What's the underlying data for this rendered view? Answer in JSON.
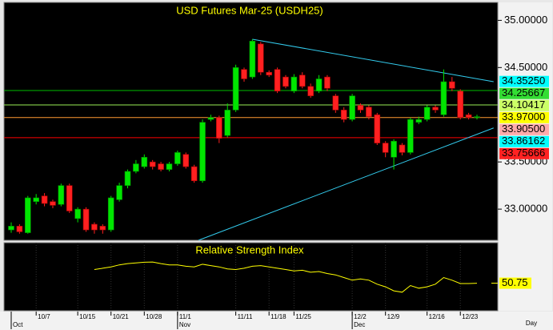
{
  "chart_data": {
    "type": "candlestick",
    "title": "USD Futures Mar-25 (USDH25)",
    "categories": [
      null,
      null,
      null,
      "10/7",
      null,
      null,
      null,
      null,
      "10/15",
      null,
      null,
      null,
      "10/21",
      null,
      null,
      null,
      "10/28",
      null,
      null,
      null,
      "11/1",
      null,
      null,
      null,
      null,
      null,
      null,
      "11/11",
      null,
      null,
      null,
      "11/18",
      null,
      null,
      "11/25",
      null,
      null,
      null,
      null,
      null,
      null,
      "12/2",
      null,
      null,
      null,
      "12/9",
      null,
      null,
      null,
      null,
      "12/16",
      null,
      null,
      null,
      "12/23",
      null,
      null
    ],
    "month_labels": [
      "Oct",
      null,
      null,
      null,
      null,
      null,
      null,
      null,
      null,
      null,
      null,
      null,
      null,
      null,
      null,
      null,
      null,
      null,
      null,
      null,
      "Nov",
      null,
      null,
      null,
      null,
      null,
      null,
      null,
      null,
      null,
      null,
      null,
      null,
      null,
      null,
      null,
      null,
      null,
      null,
      null,
      null,
      "Dec",
      null,
      null,
      null,
      null,
      null,
      null,
      null,
      null,
      null,
      null,
      null,
      null,
      null,
      null,
      null
    ],
    "open": [
      32.78,
      32.82,
      32.75,
      33.08,
      33.14,
      33.08,
      33.05,
      33.25,
      32.9,
      33.0,
      32.84,
      32.82,
      32.78,
      33.1,
      33.25,
      33.4,
      33.45,
      33.5,
      33.48,
      33.42,
      33.48,
      33.58,
      33.45,
      33.3,
      33.95,
      33.97,
      33.78,
      34.05,
      34.48,
      34.4,
      34.75,
      34.45,
      34.48,
      34.4,
      34.25,
      34.42,
      34.3,
      34.25,
      34.4,
      34.2,
      34.05,
      33.95,
      34.1,
      34.08,
      34.0,
      33.7,
      33.55,
      33.68,
      33.6,
      33.92,
      33.95,
      34.08,
      34.0,
      34.35,
      34.25,
      34.0,
      33.97
    ],
    "high": [
      32.86,
      32.84,
      33.14,
      33.16,
      33.17,
      33.1,
      33.27,
      33.27,
      33.02,
      33.02,
      32.86,
      32.84,
      33.14,
      33.28,
      33.42,
      33.52,
      33.58,
      33.52,
      33.5,
      33.5,
      33.62,
      33.6,
      33.47,
      33.95,
      34.0,
      33.99,
      34.12,
      34.53,
      34.5,
      34.8,
      34.77,
      34.47,
      34.5,
      34.42,
      34.43,
      34.45,
      34.33,
      34.42,
      34.42,
      34.22,
      34.08,
      34.22,
      34.12,
      34.1,
      34.02,
      33.72,
      33.74,
      33.7,
      33.97,
      33.98,
      34.1,
      34.1,
      34.48,
      34.4,
      34.27,
      34.02,
      34.0
    ],
    "low": [
      32.75,
      32.74,
      32.74,
      33.05,
      33.03,
      33.01,
      33.03,
      32.96,
      32.86,
      32.76,
      32.74,
      32.74,
      32.76,
      33.08,
      33.22,
      33.38,
      33.43,
      33.42,
      33.4,
      33.4,
      33.46,
      33.43,
      33.28,
      33.28,
      33.93,
      33.7,
      33.76,
      34.03,
      34.35,
      34.38,
      34.42,
      34.4,
      34.23,
      34.28,
      34.23,
      34.28,
      34.18,
      34.23,
      34.25,
      34.02,
      33.92,
      33.93,
      34.02,
      33.95,
      33.68,
      33.55,
      33.42,
      33.57,
      33.58,
      33.9,
      33.93,
      34.02,
      33.98,
      34.25,
      33.95,
      33.95,
      33.95
    ],
    "close": [
      32.82,
      32.76,
      33.12,
      33.12,
      33.06,
      33.04,
      33.25,
      32.98,
      33.0,
      32.78,
      32.78,
      32.78,
      33.12,
      33.25,
      33.4,
      33.48,
      33.55,
      33.45,
      33.42,
      33.48,
      33.6,
      33.45,
      33.3,
      33.92,
      33.97,
      33.75,
      34.05,
      34.5,
      34.38,
      34.78,
      34.45,
      34.42,
      34.25,
      34.3,
      34.4,
      34.3,
      34.2,
      34.38,
      34.28,
      34.05,
      33.95,
      34.2,
      34.05,
      33.98,
      33.7,
      33.6,
      33.72,
      33.6,
      33.95,
      33.95,
      34.08,
      34.05,
      34.35,
      34.28,
      33.97,
      33.97,
      33.98
    ],
    "up_color": "#00e600",
    "down_color": "#ff2020",
    "ylim": [
      32.67,
      35.19
    ],
    "yticks": [
      {
        "value": 35,
        "label": "35.00000"
      },
      {
        "value": 34.5,
        "label": "34.50000"
      },
      {
        "value": 33.5,
        "label": "33.50000"
      },
      {
        "value": 33,
        "label": "33.00000"
      }
    ],
    "trendlines": [
      {
        "color": "#33ccee",
        "x": [
          29,
          58
        ],
        "y": [
          34.8,
          34.35
        ]
      },
      {
        "color": "#33ccee",
        "x": [
          22.5,
          58
        ],
        "y": [
          32.67,
          33.86
        ]
      }
    ],
    "levels": [
      {
        "value": 34.3525,
        "label": "34.35250",
        "color": "#00ffff",
        "line": false
      },
      {
        "value": 34.25667,
        "label": "34.25667",
        "color": "#33dd33",
        "line": true,
        "line_color": "#00bb00"
      },
      {
        "value": 34.10417,
        "label": "34.10417",
        "color": "#ccff66",
        "line": true,
        "line_color": "#99ee55"
      },
      {
        "value": 33.97,
        "label": "33.97000",
        "color": "#ffff00",
        "line": true,
        "line_color": "#ff9933"
      },
      {
        "value": 33.905,
        "label": "33.90500",
        "color": "#ffaaaa",
        "line": false
      },
      {
        "value": 33.86162,
        "label": "33.86162",
        "color": "#00ffff",
        "line": false
      },
      {
        "value": 33.75666,
        "label": "33.75666",
        "color": "#ff2222",
        "line": true,
        "line_color": "#ff0000"
      }
    ],
    "rsi": {
      "title": "Relative Strength Index",
      "color": "#ffff00",
      "ylim": [
        30,
        80
      ],
      "values": [
        null,
        null,
        null,
        null,
        null,
        null,
        null,
        null,
        null,
        null,
        61,
        62,
        63,
        64.5,
        65.5,
        66,
        66.5,
        66.7,
        65.5,
        64.5,
        64.5,
        63.5,
        63,
        65,
        64,
        63,
        61.5,
        61,
        62,
        63.5,
        64,
        63,
        62,
        61,
        60,
        60.5,
        59,
        59.5,
        58,
        57,
        55,
        53,
        54,
        53,
        50,
        48,
        45,
        44,
        49,
        47,
        48,
        50,
        55,
        53,
        50.5,
        50.5,
        50.75
      ],
      "last": {
        "value": 50.75,
        "label": "50.75"
      }
    },
    "x_label": "Day"
  }
}
